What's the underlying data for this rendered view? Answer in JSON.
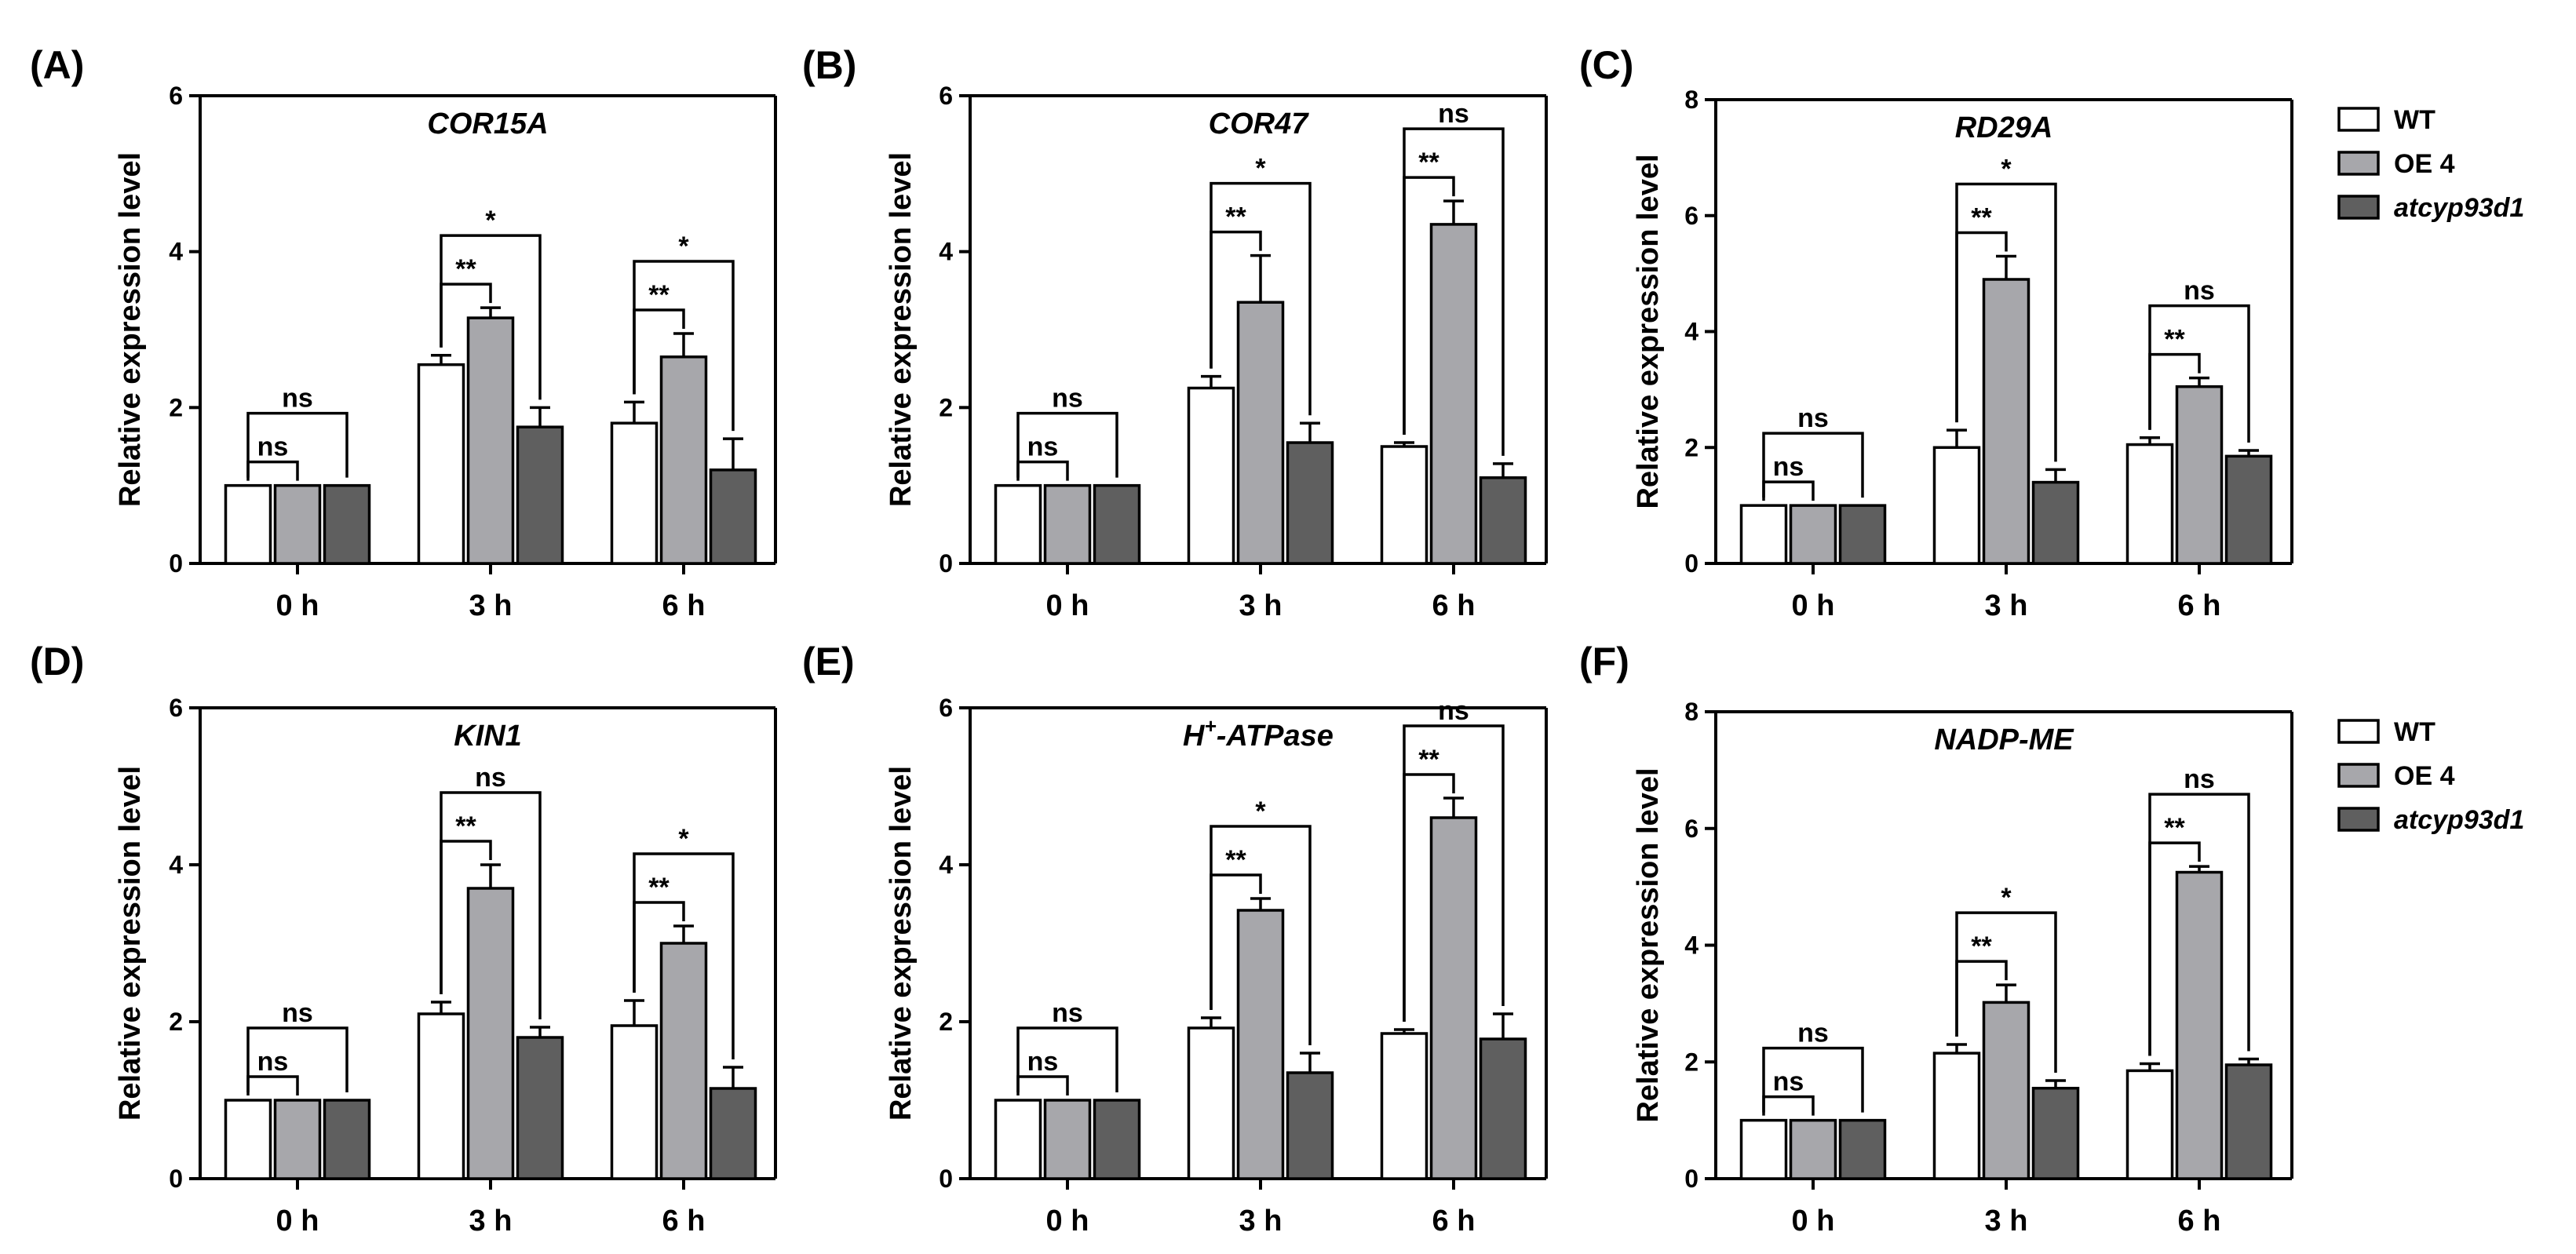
{
  "colors": {
    "WT": "#ffffff",
    "OE 4": "#a7a7ab",
    "atcyp93d1": "#5f5f5f"
  },
  "legends": [
    {
      "panel": "C",
      "entries": [
        "WT",
        "OE 4",
        "atcyp93d1"
      ]
    },
    {
      "panel": "F",
      "entries": [
        "WT",
        "OE 4",
        "atcyp93d1"
      ]
    }
  ],
  "chart_data": [
    {
      "panel": "(A)",
      "type": "bar",
      "title": "COR15A",
      "ylabel": "Relative expression level",
      "ylim": [
        0,
        6
      ],
      "yticks": [
        0,
        2,
        4,
        6
      ],
      "categories": [
        "0 h",
        "3 h",
        "6 h"
      ],
      "series": [
        {
          "name": "WT",
          "values": [
            1.0,
            2.55,
            1.8
          ],
          "errors": [
            0,
            0.12,
            0.27
          ]
        },
        {
          "name": "OE 4",
          "values": [
            1.0,
            3.15,
            2.65
          ],
          "errors": [
            0,
            0.13,
            0.3
          ]
        },
        {
          "name": "atcyp93d1",
          "values": [
            1.0,
            1.75,
            1.2
          ],
          "errors": [
            0,
            0.25,
            0.4
          ]
        }
      ],
      "annotations": [
        {
          "category": 0,
          "from": 0,
          "to": 1,
          "label": "ns",
          "level": 1
        },
        {
          "category": 0,
          "from": 0,
          "to": 2,
          "label": "ns",
          "level": 2
        },
        {
          "category": 1,
          "from": 0,
          "to": 1,
          "label": "**",
          "level": 1
        },
        {
          "category": 1,
          "from": 0,
          "to": 2,
          "label": "*",
          "level": 2
        },
        {
          "category": 2,
          "from": 0,
          "to": 1,
          "label": "**",
          "level": 1
        },
        {
          "category": 2,
          "from": 0,
          "to": 2,
          "label": "*",
          "level": 2
        }
      ]
    },
    {
      "panel": "(B)",
      "type": "bar",
      "title": "COR47",
      "ylabel": "Relative expression level",
      "ylim": [
        0,
        6
      ],
      "yticks": [
        0,
        2,
        4,
        6
      ],
      "categories": [
        "0 h",
        "3 h",
        "6 h"
      ],
      "series": [
        {
          "name": "WT",
          "values": [
            1.0,
            2.25,
            1.5
          ],
          "errors": [
            0,
            0.15,
            0.05
          ]
        },
        {
          "name": "OE 4",
          "values": [
            1.0,
            3.35,
            4.35
          ],
          "errors": [
            0,
            0.6,
            0.3
          ]
        },
        {
          "name": "atcyp93d1",
          "values": [
            1.0,
            1.55,
            1.1
          ],
          "errors": [
            0,
            0.25,
            0.18
          ]
        }
      ],
      "annotations": [
        {
          "category": 0,
          "from": 0,
          "to": 1,
          "label": "ns",
          "level": 1
        },
        {
          "category": 0,
          "from": 0,
          "to": 2,
          "label": "ns",
          "level": 2
        },
        {
          "category": 1,
          "from": 0,
          "to": 1,
          "label": "**",
          "level": 1
        },
        {
          "category": 1,
          "from": 0,
          "to": 2,
          "label": "*",
          "level": 2
        },
        {
          "category": 2,
          "from": 0,
          "to": 1,
          "label": "**",
          "level": 1
        },
        {
          "category": 2,
          "from": 0,
          "to": 2,
          "label": "ns",
          "level": 2
        }
      ]
    },
    {
      "panel": "(C)",
      "type": "bar",
      "title": "RD29A",
      "ylabel": "Relative expression level",
      "ylim": [
        0,
        8
      ],
      "yticks": [
        0,
        2,
        4,
        6,
        8
      ],
      "categories": [
        "0 h",
        "3 h",
        "6 h"
      ],
      "series": [
        {
          "name": "WT",
          "values": [
            1.0,
            2.0,
            2.05
          ],
          "errors": [
            0,
            0.3,
            0.12
          ]
        },
        {
          "name": "OE 4",
          "values": [
            1.0,
            4.9,
            3.05
          ],
          "errors": [
            0,
            0.4,
            0.15
          ]
        },
        {
          "name": "atcyp93d1",
          "values": [
            1.0,
            1.4,
            1.85
          ],
          "errors": [
            0,
            0.22,
            0.1
          ]
        }
      ],
      "annotations": [
        {
          "category": 0,
          "from": 0,
          "to": 1,
          "label": "ns",
          "level": 1
        },
        {
          "category": 0,
          "from": 0,
          "to": 2,
          "label": "ns",
          "level": 2
        },
        {
          "category": 1,
          "from": 0,
          "to": 1,
          "label": "**",
          "level": 1
        },
        {
          "category": 1,
          "from": 0,
          "to": 2,
          "label": "*",
          "level": 2
        },
        {
          "category": 2,
          "from": 0,
          "to": 1,
          "label": "**",
          "level": 1
        },
        {
          "category": 2,
          "from": 0,
          "to": 2,
          "label": "ns",
          "level": 2
        }
      ]
    },
    {
      "panel": "(D)",
      "type": "bar",
      "title": "KIN1",
      "ylabel": "Relative expression level",
      "ylim": [
        0,
        6
      ],
      "yticks": [
        0,
        2,
        4,
        6
      ],
      "categories": [
        "0 h",
        "3 h",
        "6 h"
      ],
      "series": [
        {
          "name": "WT",
          "values": [
            1.0,
            2.1,
            1.95
          ],
          "errors": [
            0,
            0.15,
            0.32
          ]
        },
        {
          "name": "OE 4",
          "values": [
            1.0,
            3.7,
            3.0
          ],
          "errors": [
            0,
            0.3,
            0.22
          ]
        },
        {
          "name": "atcyp93d1",
          "values": [
            1.0,
            1.8,
            1.15
          ],
          "errors": [
            0,
            0.13,
            0.27
          ]
        }
      ],
      "annotations": [
        {
          "category": 0,
          "from": 0,
          "to": 1,
          "label": "ns",
          "level": 1
        },
        {
          "category": 0,
          "from": 0,
          "to": 2,
          "label": "ns",
          "level": 2
        },
        {
          "category": 1,
          "from": 0,
          "to": 1,
          "label": "**",
          "level": 1
        },
        {
          "category": 1,
          "from": 0,
          "to": 2,
          "label": "ns",
          "level": 2
        },
        {
          "category": 2,
          "from": 0,
          "to": 1,
          "label": "**",
          "level": 1
        },
        {
          "category": 2,
          "from": 0,
          "to": 2,
          "label": "*",
          "level": 2
        }
      ]
    },
    {
      "panel": "(E)",
      "type": "bar",
      "title": "H+-ATPase",
      "title_parts": {
        "base": "H",
        "sup": "+",
        "rest": "-ATPase"
      },
      "ylabel": "Relative expression level",
      "ylim": [
        0,
        6
      ],
      "yticks": [
        0,
        2,
        4,
        6
      ],
      "categories": [
        "0 h",
        "3 h",
        "6 h"
      ],
      "series": [
        {
          "name": "WT",
          "values": [
            1.0,
            1.92,
            1.85
          ],
          "errors": [
            0,
            0.13,
            0.05
          ]
        },
        {
          "name": "OE 4",
          "values": [
            1.0,
            3.42,
            4.6
          ],
          "errors": [
            0,
            0.15,
            0.25
          ]
        },
        {
          "name": "atcyp93d1",
          "values": [
            1.0,
            1.35,
            1.78
          ],
          "errors": [
            0,
            0.25,
            0.32
          ]
        }
      ],
      "annotations": [
        {
          "category": 0,
          "from": 0,
          "to": 1,
          "label": "ns",
          "level": 1
        },
        {
          "category": 0,
          "from": 0,
          "to": 2,
          "label": "ns",
          "level": 2
        },
        {
          "category": 1,
          "from": 0,
          "to": 1,
          "label": "**",
          "level": 1
        },
        {
          "category": 1,
          "from": 0,
          "to": 2,
          "label": "*",
          "level": 2
        },
        {
          "category": 2,
          "from": 0,
          "to": 1,
          "label": "**",
          "level": 1
        },
        {
          "category": 2,
          "from": 0,
          "to": 2,
          "label": "ns",
          "level": 2
        }
      ]
    },
    {
      "panel": "(F)",
      "type": "bar",
      "title": "NADP-ME",
      "ylabel": "Relative expression level",
      "ylim": [
        0,
        8
      ],
      "yticks": [
        0,
        2,
        4,
        6,
        8
      ],
      "categories": [
        "0 h",
        "3 h",
        "6 h"
      ],
      "series": [
        {
          "name": "WT",
          "values": [
            1.0,
            2.15,
            1.85
          ],
          "errors": [
            0,
            0.15,
            0.12
          ]
        },
        {
          "name": "OE 4",
          "values": [
            1.0,
            3.02,
            5.25
          ],
          "errors": [
            0,
            0.3,
            0.1
          ]
        },
        {
          "name": "atcyp93d1",
          "values": [
            1.0,
            1.55,
            1.95
          ],
          "errors": [
            0,
            0.13,
            0.1
          ]
        }
      ],
      "annotations": [
        {
          "category": 0,
          "from": 0,
          "to": 1,
          "label": "ns",
          "level": 1
        },
        {
          "category": 0,
          "from": 0,
          "to": 2,
          "label": "ns",
          "level": 2
        },
        {
          "category": 1,
          "from": 0,
          "to": 1,
          "label": "**",
          "level": 1
        },
        {
          "category": 1,
          "from": 0,
          "to": 2,
          "label": "*",
          "level": 2
        },
        {
          "category": 2,
          "from": 0,
          "to": 1,
          "label": "**",
          "level": 1
        },
        {
          "category": 2,
          "from": 0,
          "to": 2,
          "label": "ns",
          "level": 2
        }
      ]
    }
  ]
}
